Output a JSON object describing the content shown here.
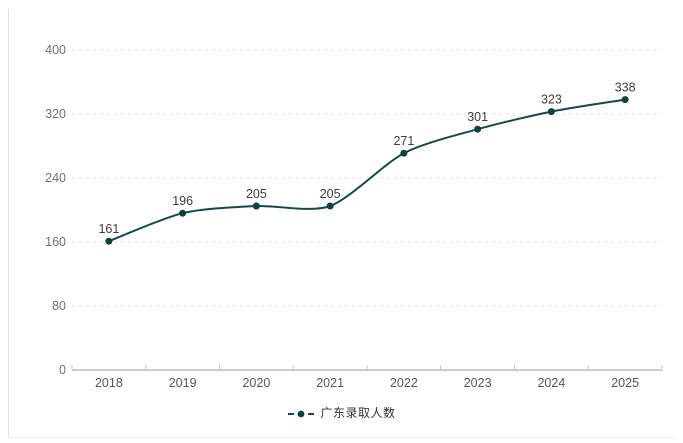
{
  "chart_data": {
    "type": "line",
    "title": "",
    "categories": [
      "2018",
      "2019",
      "2020",
      "2021",
      "2022",
      "2023",
      "2024",
      "2025"
    ],
    "series": [
      {
        "name": "广东录取人数",
        "values": [
          161,
          196,
          205,
          205,
          271,
          301,
          323,
          338
        ]
      }
    ],
    "xlabel": "",
    "ylabel": "",
    "ylim": [
      0,
      400
    ],
    "yticks": [
      0,
      80,
      160,
      240,
      320,
      400
    ],
    "smooth": true,
    "data_labels": true,
    "grid": "horizontal dashed gridlines, solid bottom axis with inner ticks",
    "legend_position": "bottom-center"
  },
  "legend": {
    "label": "广东录取人数"
  },
  "colors": {
    "series": "#15494a",
    "point": "#123f41",
    "grid_line": "#e2e2e2",
    "axis_line": "#9a9a9a",
    "axis_tick": "#c9c9c9",
    "y_label": "#707070",
    "x_label": "#565656",
    "data_label": "#3d3d3d",
    "legend_text": "#333333"
  }
}
